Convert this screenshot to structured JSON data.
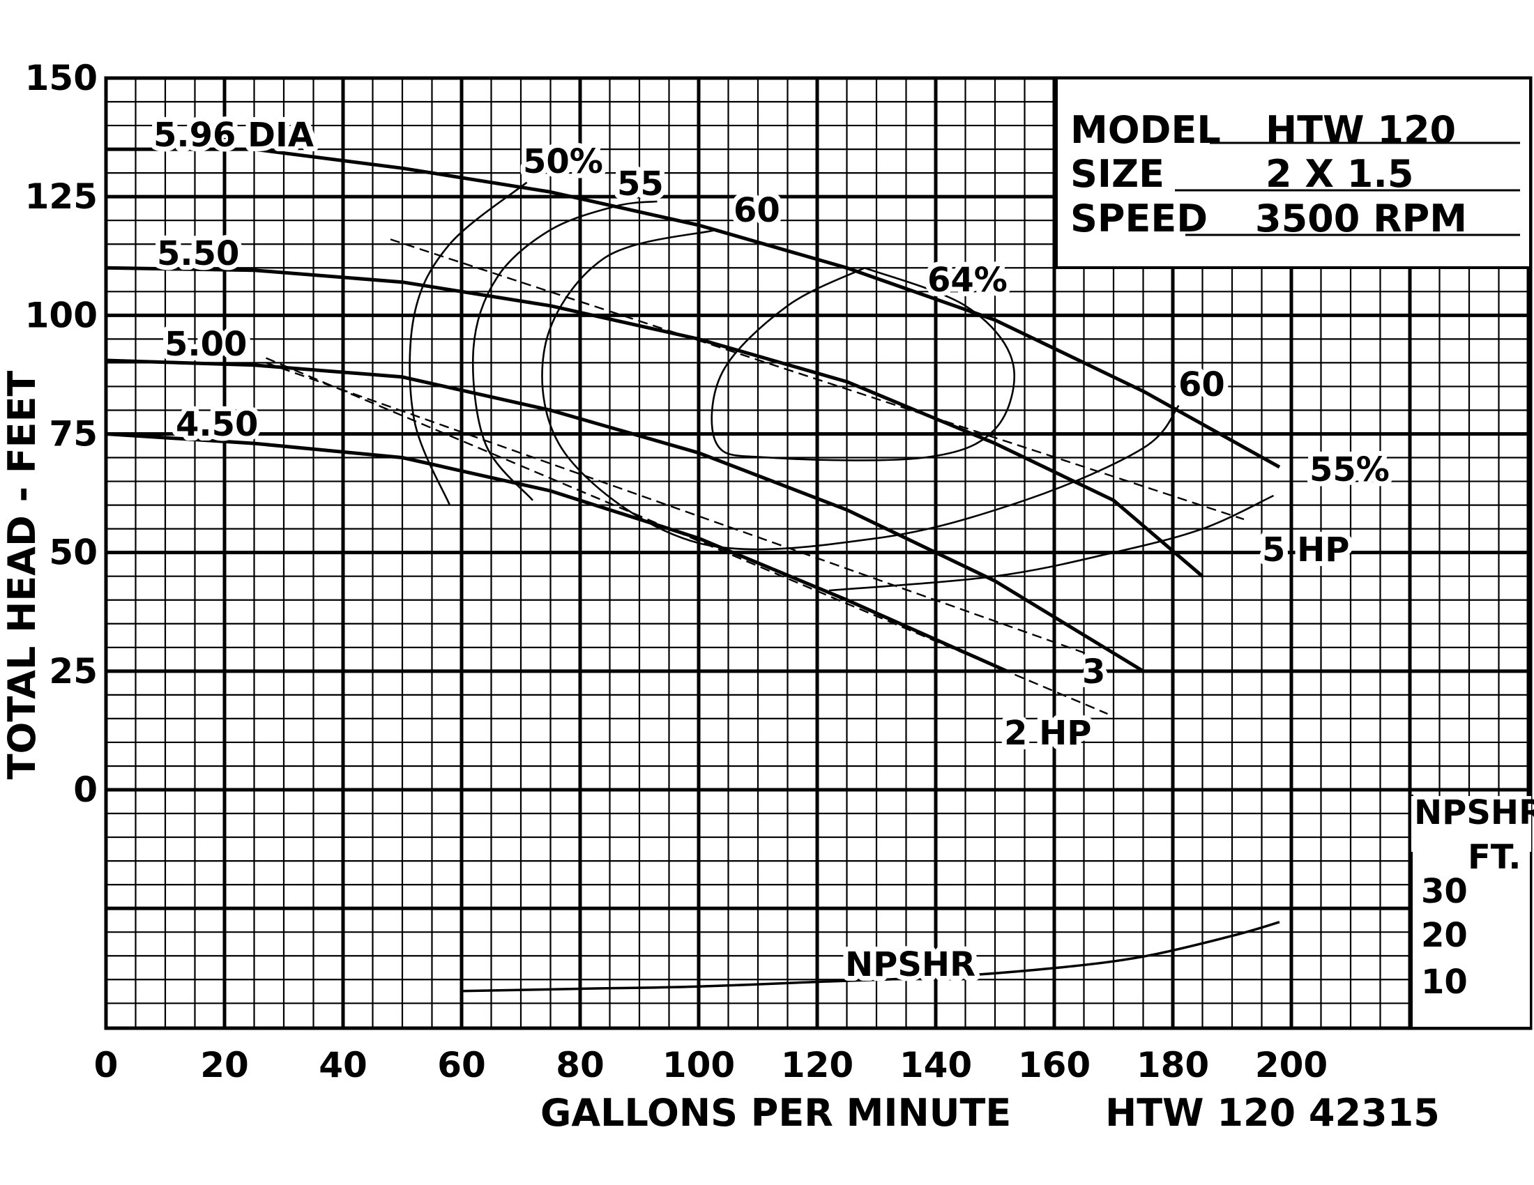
{
  "chart_data": {
    "type": "line",
    "title": "",
    "xlabel": "GALLONS PER MINUTE",
    "ylabel": "TOTAL HEAD - FEET",
    "footer_code": "HTW 120 42315",
    "xlim": [
      0,
      240
    ],
    "ylim": [
      0,
      150
    ],
    "x_ticks": [
      "0",
      "20",
      "40",
      "60",
      "80",
      "100",
      "120",
      "140",
      "160",
      "180",
      "200"
    ],
    "y_ticks": [
      "0",
      "25",
      "50",
      "75",
      "100",
      "125",
      "150"
    ],
    "grid": true,
    "info_box": {
      "rows": [
        {
          "key": "MODEL",
          "value": "HTW 120"
        },
        {
          "key": "SIZE",
          "value": "2 X 1.5"
        },
        {
          "key": "SPEED",
          "value": "3500 RPM"
        }
      ]
    },
    "npshr_axis": {
      "title_line1": "NPSHR",
      "title_line2": "FT.",
      "ticks": [
        "10",
        "20",
        "30"
      ],
      "curve_label": "NPSHR",
      "curve": [
        [
          60,
          7
        ],
        [
          80,
          7.5
        ],
        [
          100,
          8
        ],
        [
          120,
          9
        ],
        [
          140,
          10
        ],
        [
          160,
          12
        ],
        [
          175,
          14.5
        ],
        [
          190,
          19
        ],
        [
          198,
          22
        ]
      ]
    },
    "series": [
      {
        "name": "5.96 DIA",
        "values": [
          [
            0,
            135
          ],
          [
            25,
            135
          ],
          [
            50,
            131
          ],
          [
            75,
            126
          ],
          [
            100,
            119
          ],
          [
            125,
            110
          ],
          [
            150,
            99
          ],
          [
            175,
            84
          ],
          [
            198,
            68
          ]
        ]
      },
      {
        "name": "5.50",
        "values": [
          [
            0,
            110
          ],
          [
            25,
            109.5
          ],
          [
            50,
            107
          ],
          [
            75,
            102
          ],
          [
            100,
            95
          ],
          [
            125,
            86
          ],
          [
            150,
            73
          ],
          [
            170,
            61
          ],
          [
            185,
            45
          ]
        ]
      },
      {
        "name": "5.00",
        "values": [
          [
            0,
            90.5
          ],
          [
            25,
            89.5
          ],
          [
            50,
            87
          ],
          [
            75,
            80
          ],
          [
            100,
            71
          ],
          [
            125,
            59
          ],
          [
            150,
            44
          ],
          [
            175,
            25
          ]
        ]
      },
      {
        "name": "4.50",
        "values": [
          [
            0,
            75
          ],
          [
            25,
            73
          ],
          [
            50,
            70
          ],
          [
            75,
            63
          ],
          [
            100,
            53
          ],
          [
            125,
            40
          ],
          [
            152,
            25
          ]
        ]
      }
    ],
    "efficiency_curves": [
      {
        "label": "50%",
        "points": [
          [
            58,
            60
          ],
          [
            52,
            78
          ],
          [
            52,
            100
          ],
          [
            58,
            115
          ],
          [
            71,
            128
          ]
        ]
      },
      {
        "label": "55",
        "points": [
          [
            72,
            61
          ],
          [
            64,
            73
          ],
          [
            62,
            93
          ],
          [
            66,
            108
          ],
          [
            75,
            118
          ],
          [
            86,
            123
          ],
          [
            93,
            124
          ]
        ]
      },
      {
        "label": "55%",
        "points": [
          [
            122,
            42
          ],
          [
            150,
            45
          ],
          [
            170,
            50
          ],
          [
            185,
            55
          ],
          [
            197,
            62
          ]
        ]
      },
      {
        "label": "60",
        "points": [
          [
            103,
            118
          ],
          [
            84,
            112
          ],
          [
            74,
            93
          ],
          [
            78,
            70
          ],
          [
            100,
            52
          ],
          [
            130,
            53
          ],
          [
            155,
            61
          ],
          [
            175,
            72
          ],
          [
            181,
            81
          ]
        ]
      },
      {
        "label": "64%",
        "points": [
          [
            128,
            110
          ],
          [
            145,
            102
          ],
          [
            153,
            90
          ],
          [
            150,
            76
          ],
          [
            138,
            70
          ],
          [
            112,
            70
          ],
          [
            103,
            73
          ],
          [
            104,
            88
          ],
          [
            115,
            102
          ],
          [
            128,
            110
          ]
        ]
      }
    ],
    "hp_lines": [
      {
        "label": "5 HP",
        "points": [
          [
            48,
            116
          ],
          [
            192,
            57
          ]
        ]
      },
      {
        "label": "3",
        "points": [
          [
            27,
            90
          ],
          [
            167,
            28
          ]
        ]
      },
      {
        "label": "2 HP",
        "points": [
          [
            27,
            91
          ],
          [
            169,
            16
          ]
        ]
      }
    ],
    "diameter_labels": [
      "5.96 DIA",
      "5.50",
      "5.00",
      "4.50"
    ],
    "efficiency_labels": [
      "50%",
      "55",
      "60",
      "64%",
      "60",
      "55%"
    ],
    "hp_labels": [
      "5 HP",
      "3",
      "2 HP"
    ]
  }
}
